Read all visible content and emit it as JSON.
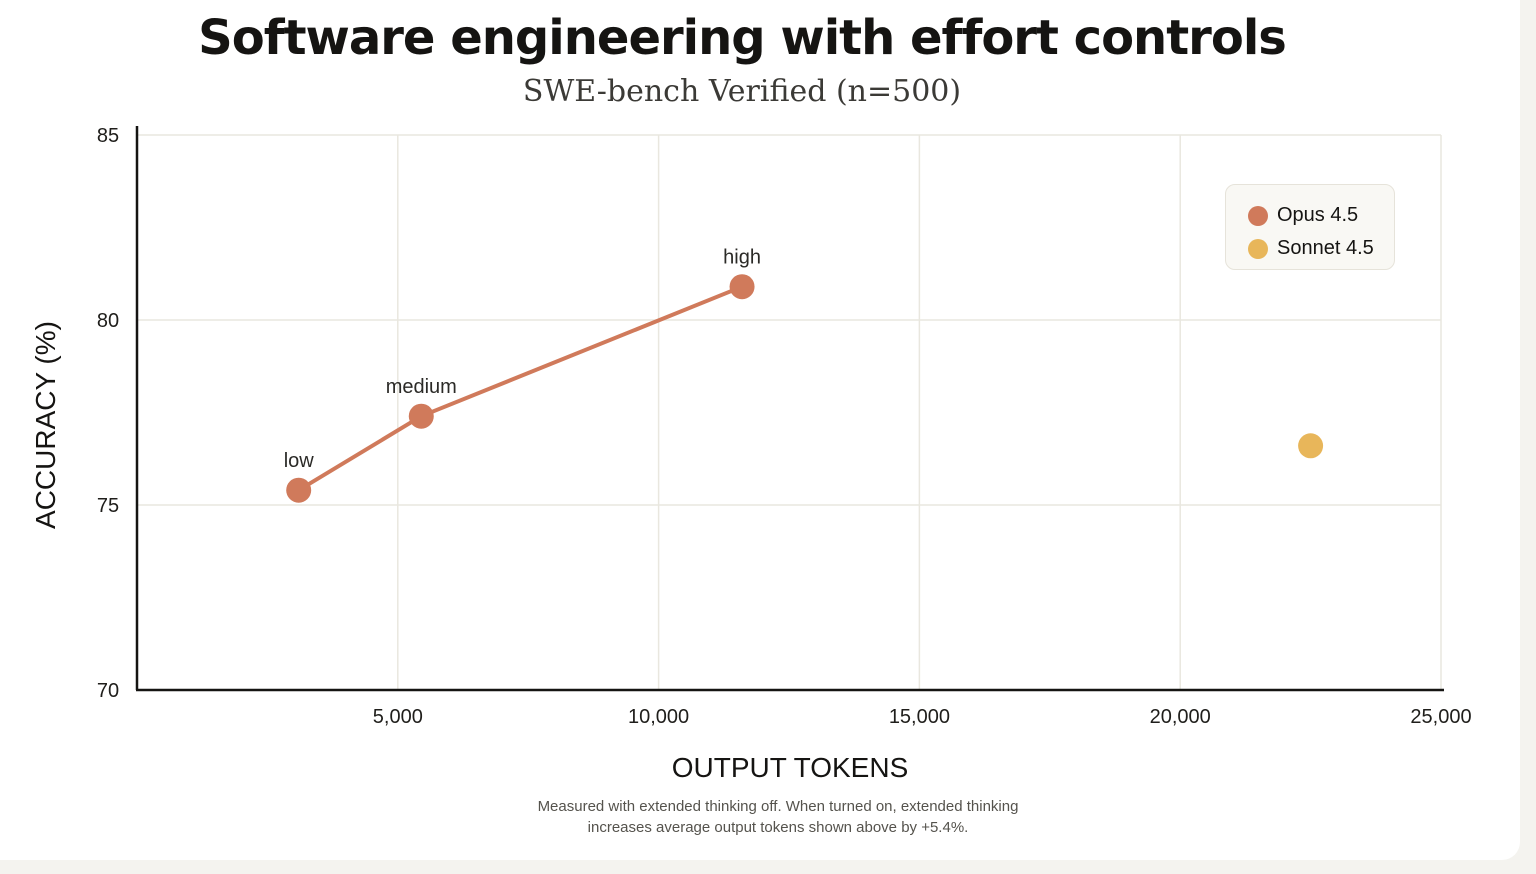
{
  "title": "Software engineering with effort controls",
  "subtitle": "SWE-bench Verified (n=500)",
  "footnote": {
    "line1": "Measured with extended thinking off. When turned on, extended thinking",
    "line2": "increases average output tokens shown above by +5.4%."
  },
  "colors": {
    "opus": "#d07a5b",
    "sonnet": "#e8b65a",
    "grid": "#e9e7df",
    "axis": "#151412"
  },
  "chart_data": {
    "type": "scatter",
    "title": "Software engineering with effort controls",
    "subtitle": "SWE-bench Verified (n=500)",
    "xlabel": "OUTPUT TOKENS",
    "ylabel": "ACCURACY (%)",
    "xlim": [
      0,
      25000
    ],
    "ylim": [
      70,
      85
    ],
    "xticks": [
      5000,
      10000,
      15000,
      20000,
      25000
    ],
    "xtick_labels": [
      "5,000",
      "10,000",
      "15,000",
      "20,000",
      "25,000"
    ],
    "yticks": [
      70,
      75,
      80,
      85
    ],
    "ytick_labels": [
      "70",
      "75",
      "80",
      "85"
    ],
    "grid": true,
    "legend_position": "top-right",
    "series": [
      {
        "name": "Opus 4.5",
        "color": "#d07a5b",
        "connected": true,
        "points": [
          {
            "x": 3100,
            "y": 75.4,
            "label": "low"
          },
          {
            "x": 5450,
            "y": 77.4,
            "label": "medium"
          },
          {
            "x": 11600,
            "y": 80.9,
            "label": "high"
          }
        ]
      },
      {
        "name": "Sonnet 4.5",
        "color": "#e8b65a",
        "connected": false,
        "points": [
          {
            "x": 22500,
            "y": 76.6,
            "label": ""
          }
        ]
      }
    ]
  }
}
